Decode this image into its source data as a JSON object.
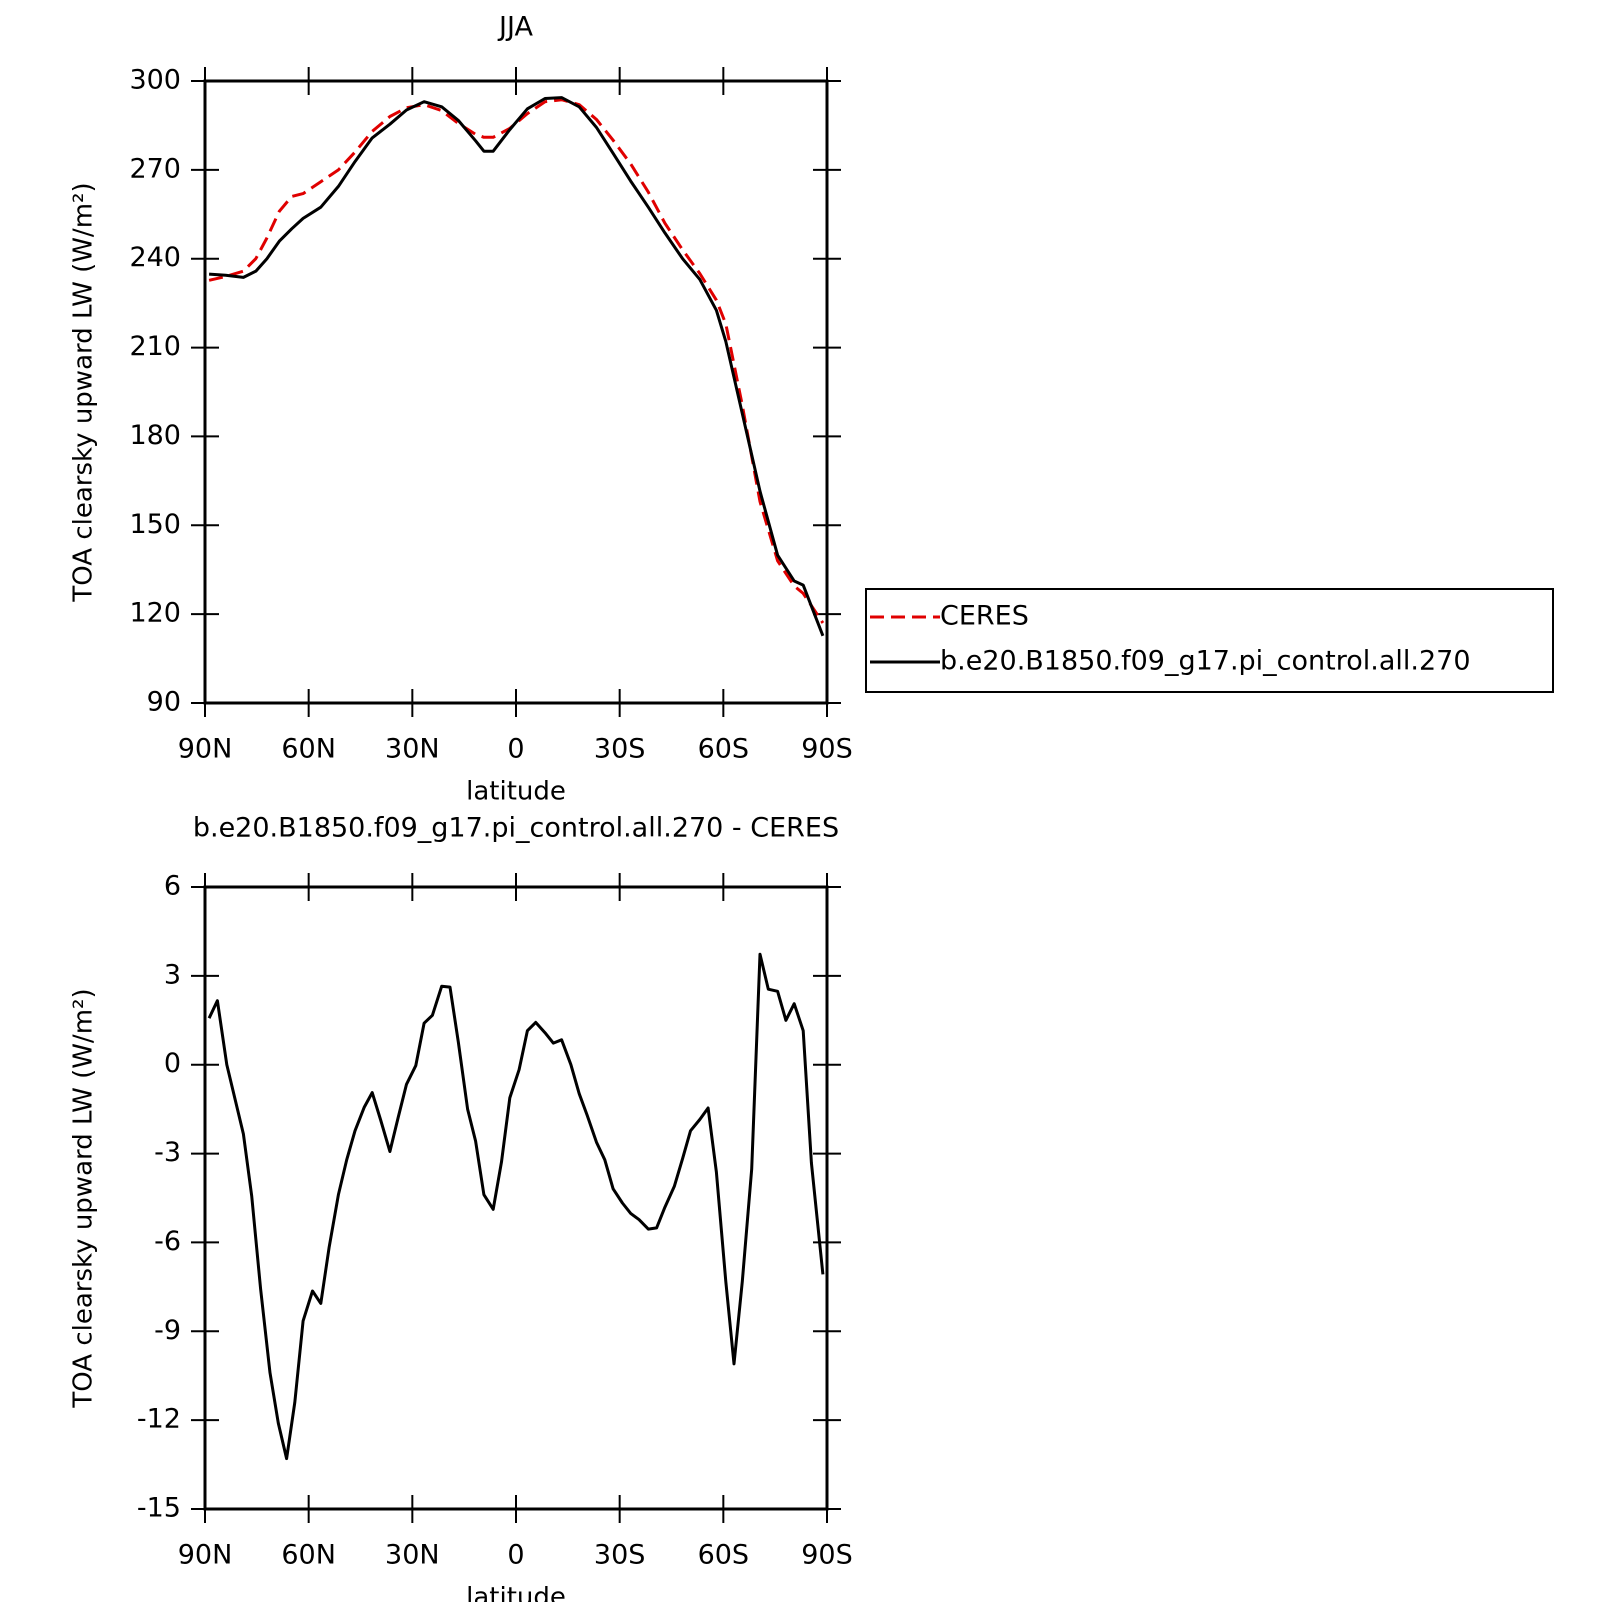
{
  "chart_data": [
    {
      "type": "line",
      "title": "JJA",
      "x_label": "latitude",
      "y_label": "TOA clearsky upward LW (W/m²)",
      "x": [
        88.8,
        84,
        78.9,
        75.3,
        72.1,
        68.5,
        64.9,
        61.6,
        56.5,
        51.4,
        46.6,
        41.6,
        36.5,
        31.7,
        26.6,
        21.5,
        16.7,
        11.7,
        9.3,
        6.6,
        1.8,
        -3.3,
        -8.4,
        -13.2,
        -18.3,
        -23.3,
        -28.1,
        -33.2,
        -38.3,
        -43.1,
        -48.2,
        -53.2,
        -58.0,
        -60.7,
        -65.5,
        -70.6,
        -75.7,
        -80.5,
        -83.1,
        -88.8
      ],
      "series": [
        {
          "name": "CERES",
          "color": "#e00000",
          "dash": true,
          "values": [
            232.7,
            234.0,
            235.8,
            240,
            247,
            256,
            261,
            262,
            266,
            270,
            276,
            283,
            288,
            291,
            292,
            290,
            285.7,
            282,
            281,
            281,
            284,
            289,
            293,
            293.7,
            292,
            287,
            280,
            272,
            262.5,
            252,
            243,
            235,
            226,
            218,
            190.5,
            158,
            138,
            129.5,
            127,
            117
          ]
        },
        {
          "name": "b.e20.B1850.f09_g17.pi_control.all.270",
          "color": "#000000",
          "dash": false,
          "values": [
            234.8,
            234.4,
            233.7,
            235.8,
            240.0,
            245.9,
            250.1,
            253.6,
            257.4,
            264.4,
            272.8,
            280.8,
            285.4,
            290.2,
            293.0,
            291.3,
            286.7,
            279.8,
            276.3,
            276.3,
            283.6,
            290.6,
            294.1,
            294.4,
            291.3,
            284.3,
            275.6,
            266.2,
            257.4,
            248.7,
            240.0,
            233.0,
            222.6,
            212.1,
            187.7,
            161.5,
            139.9,
            131.2,
            129.8,
            112.7
          ]
        }
      ],
      "xlim": [
        90,
        -90
      ],
      "xticks": [
        {
          "value": 90,
          "label": "90N"
        },
        {
          "value": 60,
          "label": "60N"
        },
        {
          "value": 30,
          "label": "30N"
        },
        0,
        {
          "value": -30,
          "label": "30S"
        },
        {
          "value": -60,
          "label": "60S"
        },
        {
          "value": -90,
          "label": "90S"
        }
      ],
      "ylim": [
        90,
        300
      ],
      "yticks": [
        90,
        120,
        150,
        180,
        210,
        240,
        270,
        300
      ],
      "legend": "right"
    },
    {
      "type": "line",
      "title": "b.e20.B1850.f09_g17.pi_control.all.270 - CERES",
      "x_label": "latitude",
      "y_label": "TOA clearsky upward LW (W/m²)",
      "x": [
        88.8,
        86.4,
        83.7,
        78.9,
        76.5,
        73.9,
        71.2,
        68.8,
        66.4,
        64.0,
        61.6,
        58.9,
        56.5,
        54.1,
        51.4,
        49.0,
        46.6,
        43.9,
        41.6,
        39.2,
        36.5,
        34.1,
        31.7,
        29.0,
        26.6,
        24.2,
        21.5,
        19.1,
        16.7,
        14.0,
        11.7,
        9.3,
        6.6,
        4.2,
        1.8,
        -0.9,
        -3.3,
        -5.7,
        -8.4,
        -10.8,
        -13.2,
        -15.9,
        -18.3,
        -20.6,
        -23.3,
        -25.7,
        -28.1,
        -30.8,
        -33.2,
        -35.6,
        -38.3,
        -40.7,
        -43.1,
        -45.8,
        -48.2,
        -50.5,
        -53.2,
        -55.6,
        -58.0,
        -60.7,
        -63.1,
        -65.5,
        -68.2,
        -70.6,
        -73.0,
        -75.7,
        -78.1,
        -80.5,
        -83.1,
        -85.5,
        -88.8
      ],
      "series": [
        {
          "color": "#000000",
          "dash": false,
          "values": [
            1.57,
            2.16,
            0.0,
            -2.34,
            -4.43,
            -7.57,
            -10.4,
            -12.1,
            -13.3,
            -11.4,
            -8.65,
            -7.64,
            -8.06,
            -6.17,
            -4.39,
            -3.21,
            -2.23,
            -1.43,
            -0.94,
            -1.85,
            -2.93,
            -1.78,
            -0.66,
            -0.03,
            1.4,
            1.67,
            2.65,
            2.62,
            0.77,
            -1.5,
            -2.58,
            -4.39,
            -4.88,
            -3.28,
            -1.12,
            -0.17,
            1.15,
            1.43,
            1.08,
            0.73,
            0.84,
            0.0,
            -0.98,
            -1.71,
            -2.62,
            -3.21,
            -4.19,
            -4.67,
            -5.02,
            -5.23,
            -5.55,
            -5.51,
            -4.81,
            -4.11,
            -3.17,
            -2.23,
            -1.85,
            -1.46,
            -3.63,
            -7.32,
            -10.1,
            -7.32,
            -3.52,
            3.73,
            2.55,
            2.48,
            1.5,
            2.06,
            1.15,
            -3.31,
            -7.08
          ]
        }
      ],
      "xlim": [
        90,
        -90
      ],
      "xticks": [
        {
          "value": 90,
          "label": "90N"
        },
        {
          "value": 60,
          "label": "60N"
        },
        {
          "value": 30,
          "label": "30N"
        },
        0,
        {
          "value": -30,
          "label": "30S"
        },
        {
          "value": -60,
          "label": "60S"
        },
        {
          "value": -90,
          "label": "90S"
        }
      ],
      "ylim": [
        -15,
        6
      ],
      "yticks": [
        -15,
        -12,
        -9,
        -6,
        -3,
        0,
        3,
        6
      ]
    }
  ]
}
